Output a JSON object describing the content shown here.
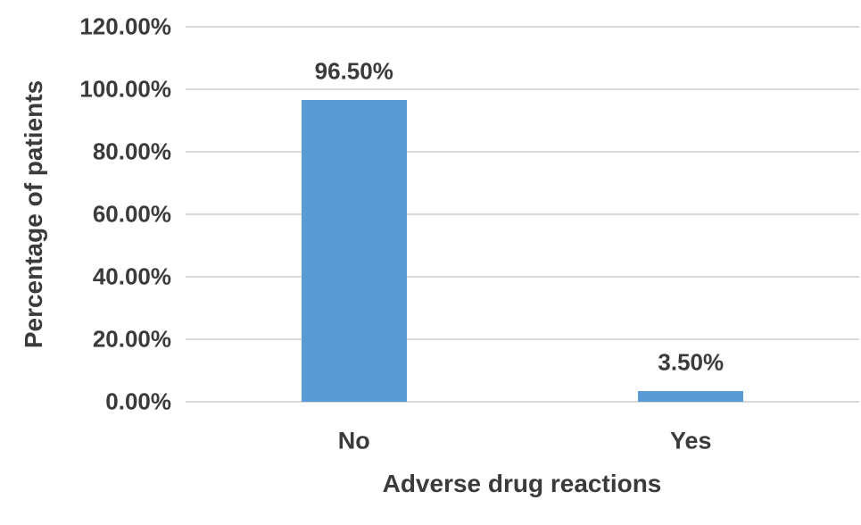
{
  "chart_data": {
    "type": "bar",
    "title": "",
    "categories": [
      "No",
      "Yes"
    ],
    "values": [
      96.5,
      3.5
    ],
    "data_labels": [
      "96.50%",
      "3.50%"
    ],
    "xlabel": "Adverse drug reactions",
    "ylabel": "Percentage of patients",
    "ylim": [
      0,
      120
    ],
    "ytick_interval": 20,
    "ytick_labels": [
      "0.00%",
      "20.00%",
      "40.00%",
      "60.00%",
      "80.00%",
      "100.00%",
      "120.00%"
    ],
    "grid": true,
    "legend_position": "none",
    "bar_color": "#5B9BD5",
    "gridline_color": "#D9D9D9",
    "axis_line_color": "#D9D9D9",
    "text_color": "#3B3B3B",
    "background_color": "#FFFFFF"
  }
}
